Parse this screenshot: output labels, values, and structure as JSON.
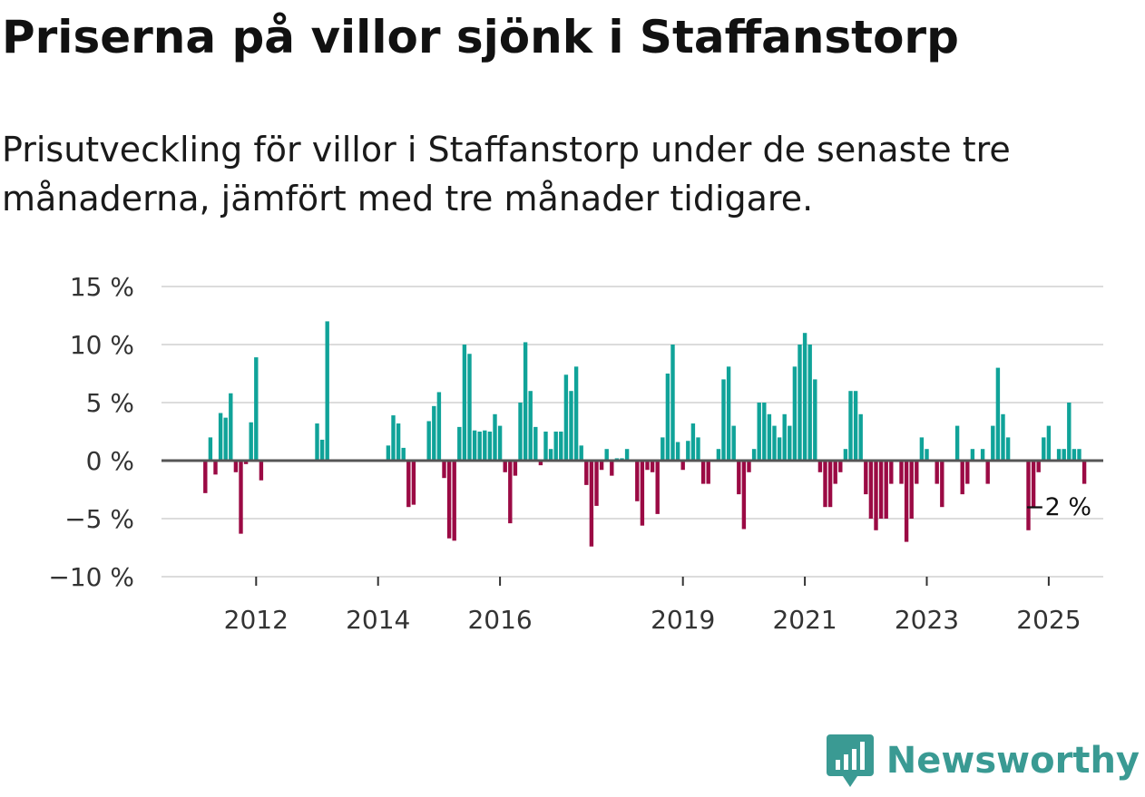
{
  "chart_data": {
    "type": "bar",
    "title": "Priserna på villor sjönk i Staffanstorp",
    "subtitle": "Prisutveckling för villor i Staffanstorp under de senaste tre månaderna, jämfört med tre månader tidigare.",
    "xlabel": "",
    "ylabel": "",
    "start": {
      "year": 2011,
      "month": 3
    },
    "ylim": [
      -10,
      15
    ],
    "yticks": [
      -10,
      -5,
      0,
      5,
      10,
      15
    ],
    "ytick_labels": [
      "−10 %",
      "−5 %",
      "0 %",
      "5 %",
      "10 %",
      "15 %"
    ],
    "xticks": [
      2012,
      2014,
      2016,
      2019,
      2021,
      2023,
      2025
    ],
    "xtick_labels": [
      "2012",
      "2014",
      "2016",
      "2019",
      "2021",
      "2023",
      "2025"
    ],
    "colors": {
      "positive": "#10a399",
      "negative": "#9b0a44",
      "grid": "#dcdcdc",
      "zero": "#555555"
    },
    "annotation": "−2 %",
    "series": [
      {
        "name": "Prisutveckling",
        "values": [
          -2.8,
          2.0,
          -1.2,
          4.1,
          3.7,
          5.8,
          -1.0,
          -6.3,
          -0.3,
          3.3,
          8.9,
          -1.7,
          0,
          0,
          0,
          0,
          0,
          0,
          0,
          0,
          0,
          0,
          3.2,
          1.8,
          12.0,
          0,
          0,
          0,
          0,
          0,
          0,
          0,
          0,
          0,
          0,
          0,
          1.3,
          3.9,
          3.2,
          1.1,
          -4.0,
          -3.8,
          0,
          0,
          3.4,
          4.7,
          5.9,
          -1.5,
          -6.7,
          -6.9,
          2.9,
          10.0,
          9.2,
          2.6,
          2.5,
          2.6,
          2.5,
          4.0,
          3.0,
          -1.0,
          -5.4,
          -1.3,
          5.0,
          10.2,
          6.0,
          2.9,
          -0.4,
          2.5,
          1.0,
          2.5,
          2.5,
          7.4,
          6.0,
          8.1,
          1.3,
          -2.1,
          -7.4,
          -3.9,
          -0.8,
          1.0,
          -1.3,
          0.2,
          0.2,
          1.0,
          0,
          -3.5,
          -5.6,
          -0.8,
          -1.0,
          -4.6,
          2.0,
          7.5,
          10.0,
          1.6,
          -0.8,
          1.7,
          3.2,
          2.0,
          -2.0,
          -2.0,
          0,
          1.0,
          7.0,
          8.1,
          3.0,
          -2.9,
          -5.9,
          -1.0,
          1.0,
          5.0,
          5.0,
          4.0,
          3.0,
          2.0,
          4.0,
          3.0,
          8.1,
          10.0,
          11.0,
          10.0,
          7.0,
          -1.0,
          -4.0,
          -4.0,
          -2.0,
          -1.0,
          1.0,
          6.0,
          6.0,
          4.0,
          -2.9,
          -5.0,
          -6.0,
          -5.0,
          -5.0,
          -2.0,
          0,
          -2.0,
          -7.0,
          -5.0,
          -2.0,
          2.0,
          1.0,
          0,
          -2.0,
          -4.0,
          0,
          0,
          3.0,
          -2.9,
          -2.0,
          1.0,
          0,
          1.0,
          -2.0,
          3.0,
          8.0,
          4.0,
          2.0,
          0,
          0,
          0,
          -6.0,
          -4.0,
          -1.0,
          2.0,
          3.0,
          0,
          1.0,
          1.0,
          5.0,
          1.0,
          1.0,
          -2.0
        ]
      }
    ]
  },
  "brand": {
    "name": "Newsworthy",
    "icon": "bar-chart-logo-icon"
  }
}
